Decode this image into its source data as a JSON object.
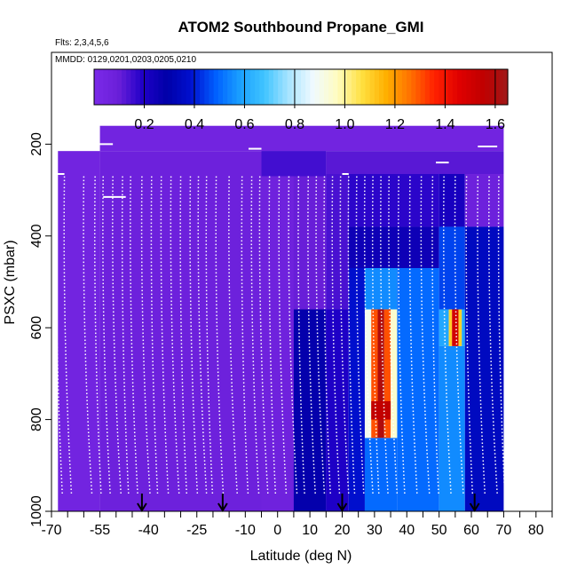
{
  "chart_data": {
    "type": "heatmap",
    "title": "ATOM2 Southbound Propane_GMI",
    "subtitle_flights": "Flts: 2,3,4,5,6",
    "subtitle_dates": "MMDD: 0129,0201,0203,0205,0210",
    "xlabel": "Latitude (deg N)",
    "ylabel": "PSXC (mbar)",
    "xlim": [
      -70,
      85
    ],
    "ylim": [
      1000,
      0
    ],
    "x_ticks": [
      -70,
      -55,
      -40,
      -25,
      -10,
      0,
      10,
      20,
      30,
      40,
      50,
      60,
      70,
      80
    ],
    "x_tick_labels": [
      "-70",
      "-55",
      "-40",
      "-25",
      "-10",
      "0",
      "10",
      "20",
      "30",
      "40",
      "50",
      "60",
      "70",
      "80"
    ],
    "y_ticks": [
      200,
      400,
      600,
      800,
      1000
    ],
    "y_tick_labels": [
      "200",
      "400",
      "600",
      "800",
      "1000"
    ],
    "colorbar": {
      "range": [
        0,
        1.65
      ],
      "ticks": [
        0.2,
        0.4,
        0.6,
        0.8,
        1.0,
        1.2,
        1.4,
        1.6
      ],
      "tick_labels": [
        "0.2",
        "0.4",
        "0.6",
        "0.8",
        "1.0",
        "1.2",
        "1.4",
        "1.6"
      ],
      "colors": [
        "#7b2ae8",
        "#6a1fd9",
        "#2000c8",
        "#0000a8",
        "#0010d0",
        "#0060ff",
        "#1aa0ff",
        "#40c4ff",
        "#a8e4ff",
        "#f0faff",
        "#fffcc0",
        "#ffe040",
        "#ffb000",
        "#ff7000",
        "#ff2000",
        "#e00000",
        "#c00000",
        "#a01818"
      ]
    },
    "flight_arrows_lat": [
      -42,
      -17,
      20,
      61
    ],
    "heatmap_cells": [
      {
        "lat": [
          -55,
          70
        ],
        "p": [
          160,
          215
        ],
        "v": 0.05
      },
      {
        "lat": [
          -68,
          -55
        ],
        "p": [
          215,
          1000
        ],
        "v": 0.05
      },
      {
        "lat": [
          -55,
          15
        ],
        "p": [
          215,
          1000
        ],
        "v": 0.08
      },
      {
        "lat": [
          -5,
          15
        ],
        "p": [
          215,
          270
        ],
        "v": 0.15
      },
      {
        "lat": [
          15,
          70
        ],
        "p": [
          215,
          265
        ],
        "v": 0.12
      },
      {
        "lat": [
          -5,
          5
        ],
        "p": [
          270,
          1000
        ],
        "v": 0.07
      },
      {
        "lat": [
          5,
          15
        ],
        "p": [
          270,
          560
        ],
        "v": 0.1
      },
      {
        "lat": [
          5,
          15
        ],
        "p": [
          560,
          1000
        ],
        "v": 0.28
      },
      {
        "lat": [
          15,
          22
        ],
        "p": [
          265,
          560
        ],
        "v": 0.14
      },
      {
        "lat": [
          15,
          22
        ],
        "p": [
          560,
          1000
        ],
        "v": 0.2
      },
      {
        "lat": [
          22,
          50
        ],
        "p": [
          265,
          380
        ],
        "v": 0.18
      },
      {
        "lat": [
          22,
          50
        ],
        "p": [
          380,
          470
        ],
        "v": 0.25
      },
      {
        "lat": [
          22,
          27
        ],
        "p": [
          470,
          1000
        ],
        "v": 0.38
      },
      {
        "lat": [
          27,
          37
        ],
        "p": [
          470,
          560
        ],
        "v": 0.55
      },
      {
        "lat": [
          27,
          37
        ],
        "p": [
          840,
          1000
        ],
        "v": 0.5
      },
      {
        "lat": [
          37,
          50
        ],
        "p": [
          470,
          1000
        ],
        "v": 0.5
      },
      {
        "lat": [
          50,
          58
        ],
        "p": [
          265,
          380
        ],
        "v": 0.22
      },
      {
        "lat": [
          50,
          58
        ],
        "p": [
          380,
          560
        ],
        "v": 0.45
      },
      {
        "lat": [
          50,
          53
        ],
        "p": [
          560,
          640
        ],
        "v": 0.6
      },
      {
        "lat": [
          57,
          58
        ],
        "p": [
          560,
          640
        ],
        "v": 0.6
      },
      {
        "lat": [
          50,
          58
        ],
        "p": [
          640,
          1000
        ],
        "v": 0.55
      },
      {
        "lat": [
          58,
          70
        ],
        "p": [
          265,
          380
        ],
        "v": 0.08
      },
      {
        "lat": [
          58,
          70
        ],
        "p": [
          380,
          1000
        ],
        "v": 0.35
      },
      {
        "lat": [
          27,
          29
        ],
        "p": [
          560,
          840
        ],
        "v": 0.9
      },
      {
        "lat": [
          29,
          31
        ],
        "p": [
          560,
          840
        ],
        "v": 1.3
      },
      {
        "lat": [
          31,
          33
        ],
        "p": [
          560,
          840
        ],
        "v": 1.6
      },
      {
        "lat": [
          33,
          35
        ],
        "p": [
          560,
          840
        ],
        "v": 1.3
      },
      {
        "lat": [
          35,
          37
        ],
        "p": [
          560,
          840
        ],
        "v": 0.95
      },
      {
        "lat": [
          29,
          35
        ],
        "p": [
          760,
          800
        ],
        "v": 1.55
      },
      {
        "lat": [
          53,
          54
        ],
        "p": [
          560,
          640
        ],
        "v": 1.1
      },
      {
        "lat": [
          54,
          56
        ],
        "p": [
          560,
          640
        ],
        "v": 1.5
      },
      {
        "lat": [
          56,
          57
        ],
        "p": [
          560,
          640
        ],
        "v": 1.1
      }
    ]
  }
}
